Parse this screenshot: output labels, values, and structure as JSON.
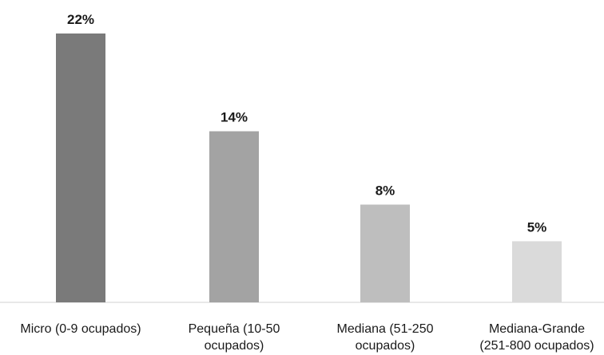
{
  "chart_data": {
    "type": "bar",
    "categories": [
      [
        "Micro (0-9 ocupados)"
      ],
      [
        "Pequeña (10-50",
        "ocupados)"
      ],
      [
        "Mediana (51-250",
        "ocupados)"
      ],
      [
        "Mediana-Grande",
        "(251-800 ocupados)"
      ]
    ],
    "values": [
      22,
      14,
      8,
      5
    ],
    "value_labels": [
      "22%",
      "14%",
      "8%",
      "5%"
    ],
    "bar_colors": [
      "#7a7a7a",
      "#a3a3a3",
      "#bebebe",
      "#dadada"
    ],
    "unit": "%",
    "ylim": [
      0,
      24
    ],
    "grid": false,
    "legend": "none"
  }
}
